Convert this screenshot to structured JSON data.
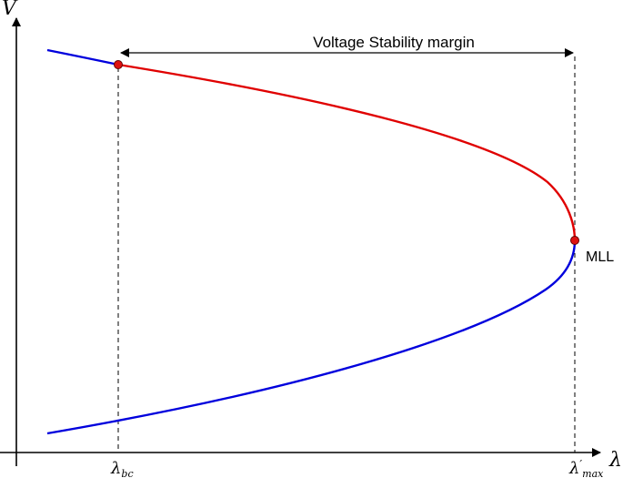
{
  "diagram": {
    "y_axis_label": "V",
    "x_axis_label": "λ",
    "margin_label": "Voltage Stability margin",
    "point_label": "MLL",
    "lambda_bc": {
      "symbol": "λ",
      "subscript": "bc"
    },
    "lambda_max": {
      "symbol": "λ",
      "prime": "′",
      "subscript": "max"
    },
    "colors": {
      "stable_branch": "#0000dd",
      "margin_branch": "#e00000",
      "point_fill": "#dd1111",
      "point_stroke": "#660000"
    }
  }
}
